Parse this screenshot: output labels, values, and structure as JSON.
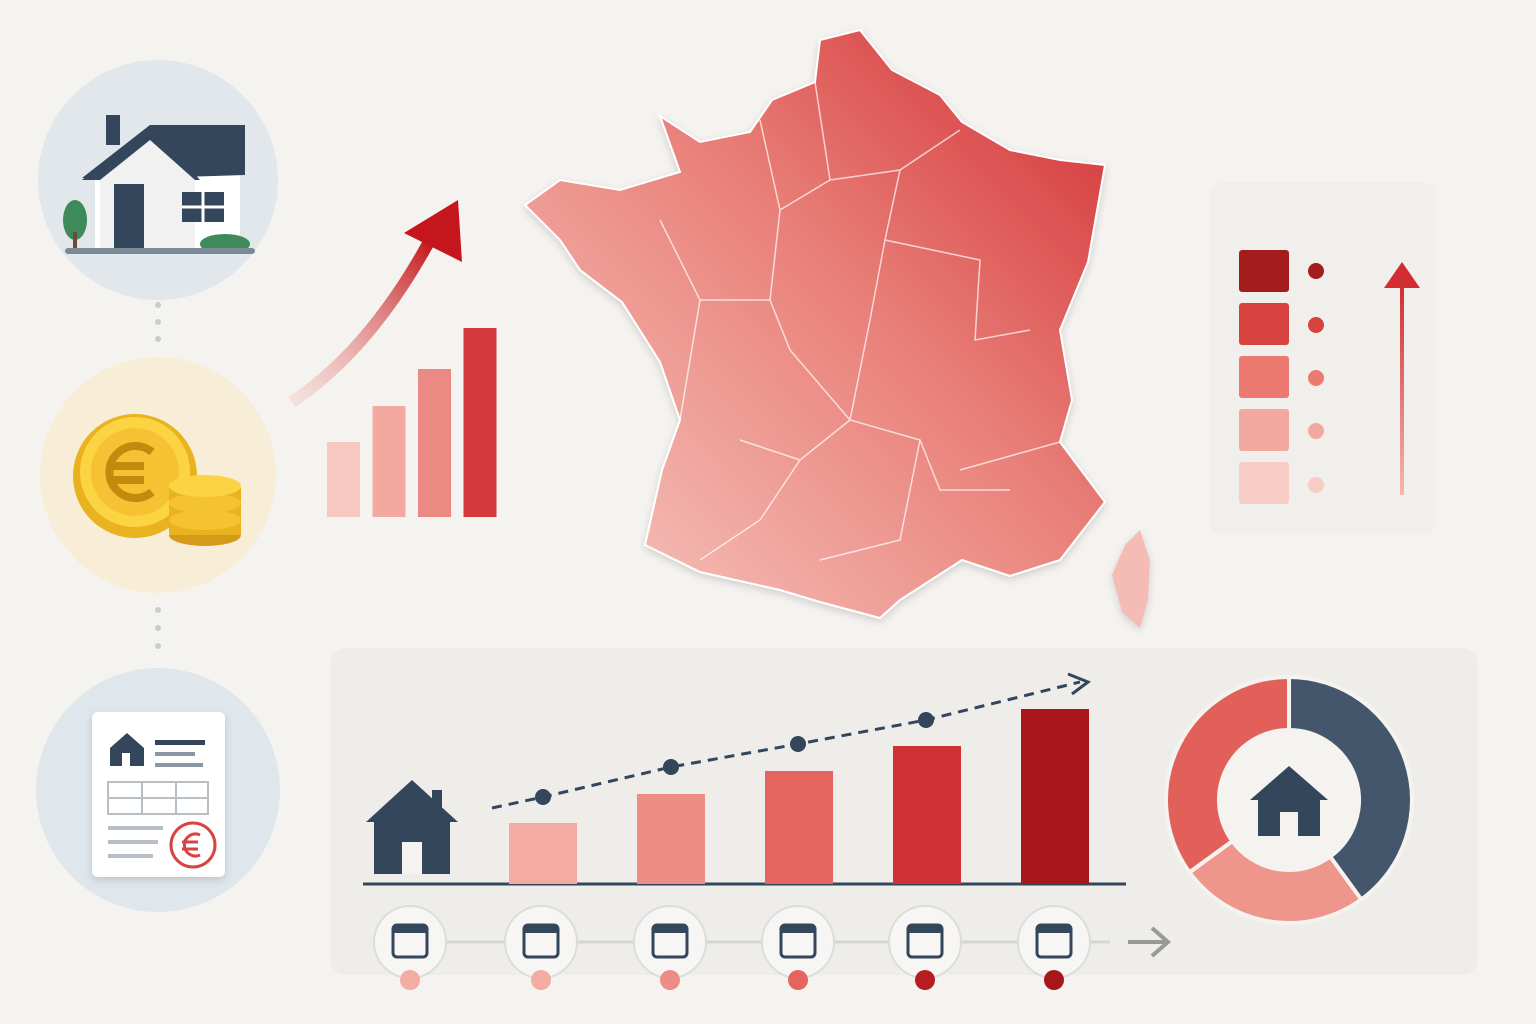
{
  "chart_data": [
    {
      "type": "bar",
      "values": [
        75,
        111,
        148,
        189
      ],
      "colors": [
        "#f6c8c0",
        "#f2aaa0",
        "#ea8a82",
        "#d43a3c"
      ]
    },
    {
      "type": "bar",
      "values": [
        61,
        90,
        113,
        138,
        175
      ],
      "colors": [
        "#f4aca2",
        "#ee8d85",
        "#e4645f",
        "#cf3234",
        "#a8161a"
      ]
    },
    {
      "type": "pie",
      "values": [
        40,
        25,
        35
      ],
      "colors": [
        "#44566b",
        "#ee958c",
        "#e2605a"
      ]
    }
  ]
}
